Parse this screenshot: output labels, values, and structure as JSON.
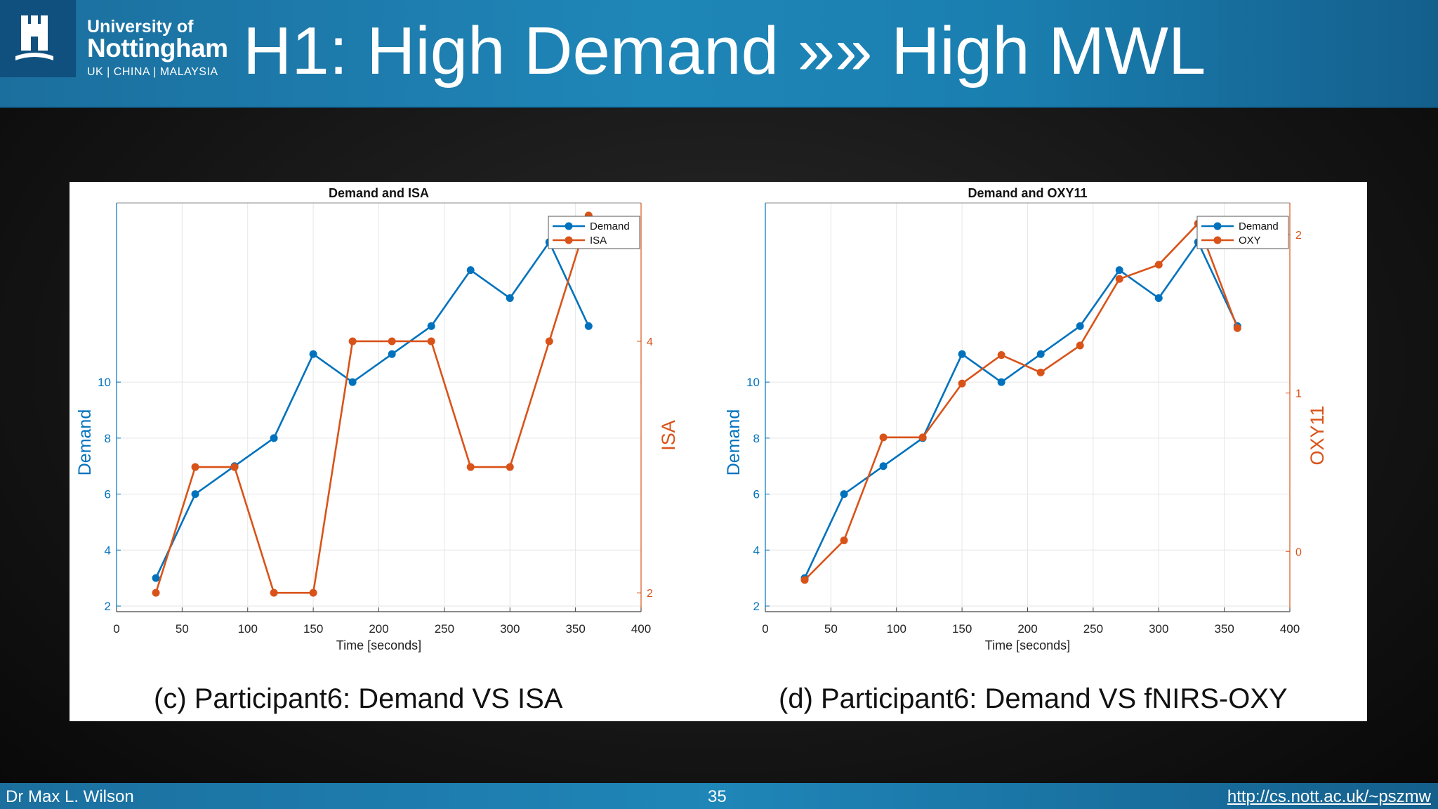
{
  "header": {
    "logo_line1": "University of",
    "logo_line2": "Nottingham",
    "logo_line3": "UK | CHINA | MALAYSIA",
    "title": "H1: High Demand »» High MWL"
  },
  "captions": {
    "left": "(c) Participant6: Demand VS ISA",
    "right": "(d) Participant6: Demand VS fNIRS-OXY"
  },
  "footer": {
    "author": "Dr Max L. Wilson",
    "page": "35",
    "url": "http://cs.nott.ac.uk/~pszmw"
  },
  "colors": {
    "demand": "#0072BD",
    "secondary": "#D95319",
    "header": "#1b7fb0"
  },
  "chart_data": [
    {
      "type": "line",
      "title": "Demand and ISA",
      "xlabel": "Time [seconds]",
      "ylabel_left": "Demand",
      "ylabel_right": "ISA",
      "xlim": [
        0,
        400
      ],
      "ylim_left": [
        1.8,
        16.4
      ],
      "ylim_right": [
        1.85,
        5.1
      ],
      "xticks": [
        0,
        50,
        100,
        150,
        200,
        250,
        300,
        350,
        400
      ],
      "yticks_left": [
        2,
        4,
        6,
        8,
        10
      ],
      "yticks_right": [
        2,
        4
      ],
      "grid": true,
      "legend_position": "top-right",
      "x": [
        30,
        60,
        90,
        120,
        150,
        180,
        210,
        240,
        270,
        300,
        330,
        360
      ],
      "series": [
        {
          "name": "Demand",
          "axis": "left",
          "values": [
            3,
            6,
            7,
            8,
            11,
            10,
            11,
            12,
            14,
            13,
            15,
            12
          ]
        },
        {
          "name": "ISA",
          "axis": "right",
          "values": [
            2,
            3,
            3,
            2,
            2,
            4,
            4,
            4,
            3,
            3,
            4,
            5
          ]
        }
      ]
    },
    {
      "type": "line",
      "title": "Demand and OXY11",
      "xlabel": "Time [seconds]",
      "ylabel_left": "Demand",
      "ylabel_right": "OXY11",
      "xlim": [
        0,
        400
      ],
      "ylim_left": [
        1.8,
        16.4
      ],
      "ylim_right": [
        -0.38,
        2.2
      ],
      "xticks": [
        0,
        50,
        100,
        150,
        200,
        250,
        300,
        350,
        400
      ],
      "yticks_left": [
        2,
        4,
        6,
        8,
        10
      ],
      "yticks_right": [
        0,
        1,
        2
      ],
      "grid": true,
      "legend_position": "top-right",
      "x": [
        30,
        60,
        90,
        120,
        150,
        180,
        210,
        240,
        270,
        300,
        330,
        360
      ],
      "series": [
        {
          "name": "Demand",
          "axis": "left",
          "values": [
            3,
            6,
            7,
            8,
            11,
            10,
            11,
            12,
            14,
            13,
            15,
            12
          ]
        },
        {
          "name": "OXY",
          "axis": "right",
          "values": [
            -0.18,
            0.07,
            0.72,
            0.72,
            1.06,
            1.24,
            1.13,
            1.3,
            1.72,
            1.81,
            2.07,
            1.41
          ]
        }
      ]
    }
  ]
}
